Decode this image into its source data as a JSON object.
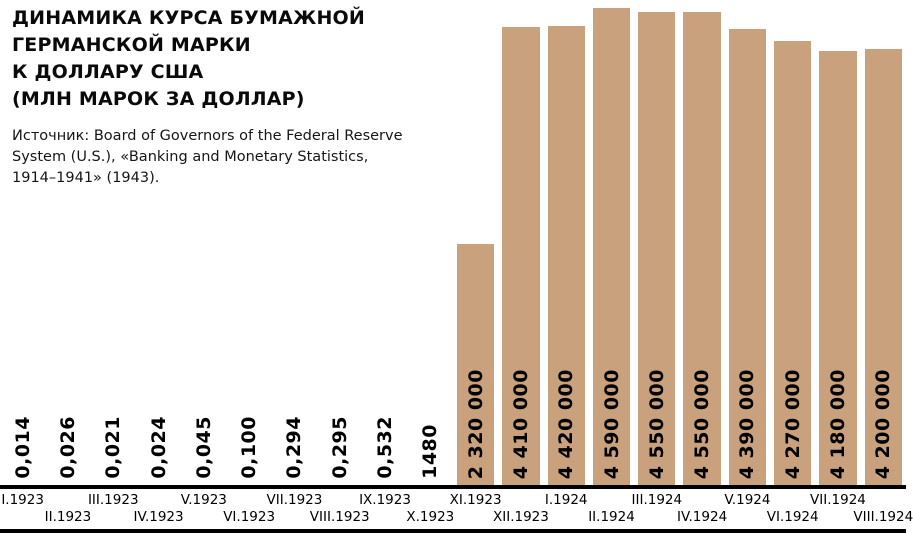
{
  "header": {
    "title_lines": [
      "ДИНАМИКА КУРСА БУМАЖНОЙ",
      "ГЕРМАНСКОЙ МАРКИ",
      "К ДОЛЛАРУ США",
      "(МЛН МАРОК ЗА ДОЛЛАР)"
    ],
    "source_lines": [
      "Источник: Board of Governors of the Federal Reserve",
      "System (U.S.), «Banking and Monetary Statistics,",
      "1914–1941» (1943)."
    ]
  },
  "chart_data": {
    "type": "bar",
    "title": "Динамика курса бумажной германской марки к доллару США (млн марок за доллар)",
    "xlabel": "",
    "ylabel": "млн марок за доллар",
    "ylim": [
      0,
      4590000
    ],
    "grid": false,
    "legend": "none",
    "bar_color": "#c9a17d",
    "categories": [
      "I.1923",
      "II.1923",
      "III.1923",
      "IV.1923",
      "V.1923",
      "VI.1923",
      "VII.1923",
      "VIII.1923",
      "IX.1923",
      "X.1923",
      "XI.1923",
      "XII.1923",
      "I.1924",
      "II.1924",
      "III.1924",
      "IV.1924",
      "V.1924",
      "VI.1924",
      "VII.1924",
      "VIII.1924"
    ],
    "values": [
      0.014,
      0.026,
      0.021,
      0.024,
      0.045,
      0.1,
      0.294,
      0.295,
      0.532,
      1480,
      2320000,
      4410000,
      4420000,
      4590000,
      4550000,
      4550000,
      4390000,
      4270000,
      4180000,
      4200000
    ],
    "value_labels": [
      "0,014",
      "0,026",
      "0,021",
      "0,024",
      "0,045",
      "0,100",
      "0,294",
      "0,295",
      "0,532",
      "1480",
      "2 320 000",
      "4 410 000",
      "4 420 000",
      "4 590 000",
      "4 550 000",
      "4 550 000",
      "4 390 000",
      "4 270 000",
      "4 180 000",
      "4 200 000"
    ]
  }
}
